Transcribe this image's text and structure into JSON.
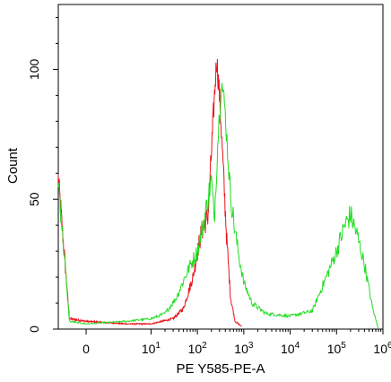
{
  "chart_data": {
    "type": "line",
    "title": "",
    "xlabel": "PE Y585-PE-A",
    "ylabel": "Count",
    "x_scale": "biexponential",
    "xlim": [
      -1,
      1000000
    ],
    "ylim": [
      0,
      125
    ],
    "x_ticks": [
      {
        "base": "0",
        "exp": ""
      },
      {
        "base": "10",
        "exp": "1"
      },
      {
        "base": "10",
        "exp": "2"
      },
      {
        "base": "10",
        "exp": "3"
      },
      {
        "base": "10",
        "exp": "4"
      },
      {
        "base": "10",
        "exp": "5"
      },
      {
        "base": "10",
        "exp": "6"
      }
    ],
    "y_ticks": [
      "0",
      "50",
      "100"
    ],
    "y_tick_values": [
      0,
      50,
      100
    ],
    "grid": false,
    "series": [
      {
        "color": "#e8141e",
        "points": [
          [
            -1,
            58
          ],
          [
            -0.6,
            4
          ],
          [
            0,
            3
          ],
          [
            3,
            2
          ],
          [
            10,
            2
          ],
          [
            30,
            4
          ],
          [
            50,
            8
          ],
          [
            80,
            20
          ],
          [
            120,
            37
          ],
          [
            170,
            44
          ],
          [
            230,
            88
          ],
          [
            260,
            104
          ],
          [
            300,
            90
          ],
          [
            360,
            62
          ],
          [
            430,
            34
          ],
          [
            520,
            12
          ],
          [
            650,
            3
          ],
          [
            900,
            1
          ]
        ]
      },
      {
        "color": "#22dd22",
        "points": [
          [
            -1,
            58
          ],
          [
            -0.6,
            3
          ],
          [
            0,
            2
          ],
          [
            3,
            3
          ],
          [
            10,
            4
          ],
          [
            20,
            6
          ],
          [
            35,
            12
          ],
          [
            60,
            22
          ],
          [
            100,
            30
          ],
          [
            150,
            45
          ],
          [
            200,
            58
          ],
          [
            230,
            42
          ],
          [
            280,
            75
          ],
          [
            330,
            96
          ],
          [
            400,
            83
          ],
          [
            500,
            55
          ],
          [
            600,
            42
          ],
          [
            750,
            30
          ],
          [
            1000,
            18
          ],
          [
            1500,
            10
          ],
          [
            3000,
            6
          ],
          [
            10000,
            5
          ],
          [
            30000,
            7
          ],
          [
            60000,
            20
          ],
          [
            100000,
            30
          ],
          [
            150000,
            40
          ],
          [
            200000,
            44
          ],
          [
            280000,
            36
          ],
          [
            400000,
            25
          ],
          [
            600000,
            8
          ],
          [
            800000,
            0
          ]
        ]
      }
    ]
  }
}
